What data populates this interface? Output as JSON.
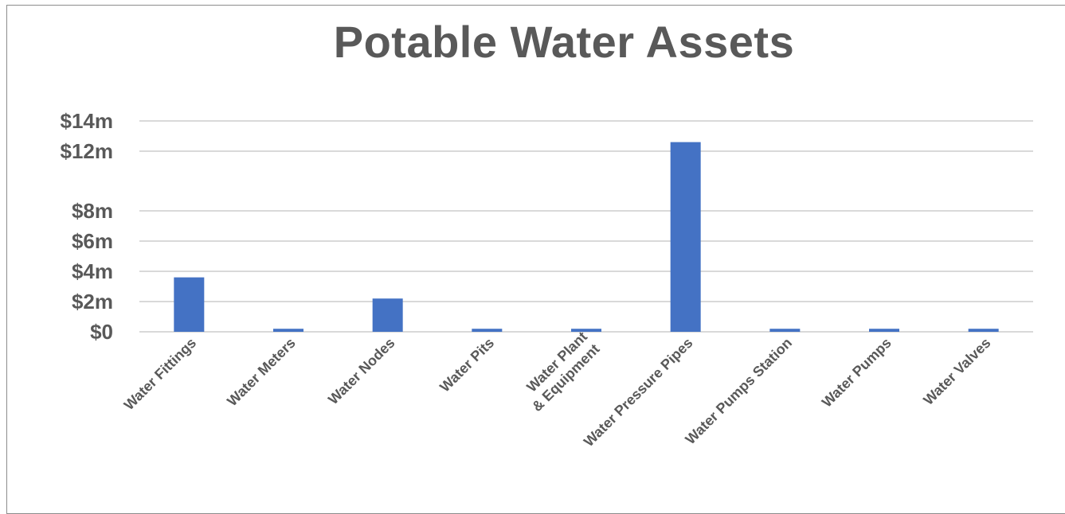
{
  "chart_data": {
    "type": "bar",
    "title": "Potable Water Assets",
    "xlabel": "",
    "ylabel": "",
    "categories": [
      [
        "Water Fittings"
      ],
      [
        "Water Meters"
      ],
      [
        "Water Nodes"
      ],
      [
        "Water Pits"
      ],
      [
        "Water Plant",
        "& Equipment"
      ],
      [
        "Water Pressure Pipes"
      ],
      [
        "Water Pumps Station"
      ],
      [
        "Water Pumps"
      ],
      [
        "Water Valves"
      ]
    ],
    "values": [
      3.6,
      0.2,
      2.2,
      0.2,
      0.2,
      12.6,
      0.2,
      0.2,
      0.2
    ],
    "y_ticks": [
      {
        "value": 0,
        "label": "$0"
      },
      {
        "value": 2,
        "label": "$2m"
      },
      {
        "value": 4,
        "label": "$4m"
      },
      {
        "value": 6,
        "label": "$6m"
      },
      {
        "value": 8,
        "label": "$8m"
      },
      {
        "value": 12,
        "label": "$12m"
      },
      {
        "value": 14,
        "label": "$14m"
      }
    ],
    "ylim": [
      0,
      14
    ],
    "grid": true,
    "bar_color": "#4472C4",
    "grid_color": "#d9d9d9",
    "text_color": "#595959",
    "legend": "none"
  }
}
